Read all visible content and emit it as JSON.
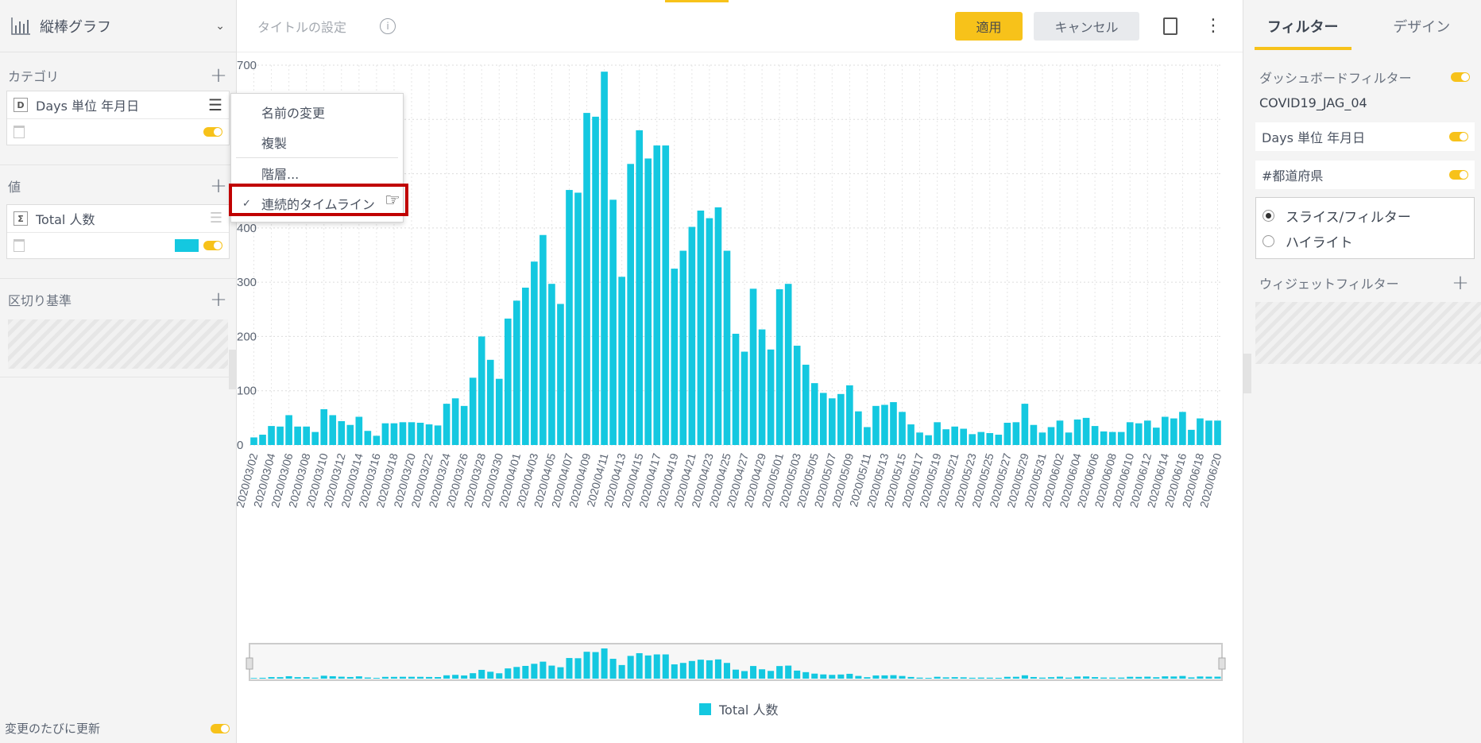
{
  "left_panel": {
    "chart_type_label": "縦棒グラフ",
    "category_label": "カテゴリ",
    "category_field": {
      "badge": "D",
      "label": "Days 単位 年月日"
    },
    "value_label": "値",
    "value_field": {
      "badge": "Σ",
      "label": "Total 人数",
      "color": "#14c8e0"
    },
    "breakby_label": "区切り基準",
    "auto_update_label": "変更のたびに更新"
  },
  "context_menu": {
    "items": [
      "名前の変更",
      "複製",
      "階層...",
      "連続的タイムライン"
    ],
    "checked_index": 3
  },
  "topbar": {
    "title_placeholder": "タイトルの設定",
    "info": "i",
    "apply": "適用",
    "cancel": "キャンセル"
  },
  "right_panel": {
    "tab_filter": "フィルター",
    "tab_design": "デザイン",
    "dashboard_filter_label": "ダッシュボードフィルター",
    "datasource": "COVID19_JAG_04",
    "filters": [
      "Days 単位 年月日",
      "#都道府県"
    ],
    "radio_slice": "スライス/フィルター",
    "radio_highlight": "ハイライト",
    "widget_filter_label": "ウィジェットフィルター"
  },
  "colors": {
    "accent": "#f7c21a",
    "bar": "#14c8e0"
  },
  "chart_data": {
    "type": "bar",
    "series_name": "Total 人数",
    "ylim": [
      0,
      700
    ],
    "yticks": [
      0,
      100,
      200,
      300,
      400,
      500,
      600,
      700
    ],
    "grid": true,
    "legend": "bottom",
    "start_date": "2020/03/02",
    "categories": [
      "2020/03/02",
      "2020/03/03",
      "2020/03/04",
      "2020/03/05",
      "2020/03/06",
      "2020/03/07",
      "2020/03/08",
      "2020/03/09",
      "2020/03/10",
      "2020/03/11",
      "2020/03/12",
      "2020/03/13",
      "2020/03/14",
      "2020/03/15",
      "2020/03/16",
      "2020/03/17",
      "2020/03/18",
      "2020/03/19",
      "2020/03/20",
      "2020/03/21",
      "2020/03/22",
      "2020/03/23",
      "2020/03/24",
      "2020/03/25",
      "2020/03/26",
      "2020/03/27",
      "2020/03/28",
      "2020/03/29",
      "2020/03/30",
      "2020/03/31",
      "2020/04/01",
      "2020/04/02",
      "2020/04/03",
      "2020/04/04",
      "2020/04/05",
      "2020/04/06",
      "2020/04/07",
      "2020/04/08",
      "2020/04/09",
      "2020/04/10",
      "2020/04/11",
      "2020/04/12",
      "2020/04/13",
      "2020/04/14",
      "2020/04/15",
      "2020/04/16",
      "2020/04/17",
      "2020/04/18",
      "2020/04/19",
      "2020/04/20",
      "2020/04/21",
      "2020/04/22",
      "2020/04/23",
      "2020/04/24",
      "2020/04/25",
      "2020/04/26",
      "2020/04/27",
      "2020/04/28",
      "2020/04/29",
      "2020/04/30",
      "2020/05/01",
      "2020/05/02",
      "2020/05/03",
      "2020/05/04",
      "2020/05/05",
      "2020/05/06",
      "2020/05/07",
      "2020/05/08",
      "2020/05/09",
      "2020/05/10",
      "2020/05/11",
      "2020/05/12",
      "2020/05/13",
      "2020/05/14",
      "2020/05/15",
      "2020/05/16",
      "2020/05/17",
      "2020/05/18",
      "2020/05/19",
      "2020/05/20",
      "2020/05/21",
      "2020/05/22",
      "2020/05/23",
      "2020/05/24",
      "2020/05/25",
      "2020/05/26",
      "2020/05/27",
      "2020/05/28",
      "2020/05/29",
      "2020/05/30",
      "2020/05/31",
      "2020/06/01",
      "2020/06/02",
      "2020/06/03",
      "2020/06/04",
      "2020/06/05",
      "2020/06/06",
      "2020/06/07",
      "2020/06/08",
      "2020/06/09",
      "2020/06/10",
      "2020/06/11",
      "2020/06/12",
      "2020/06/13",
      "2020/06/14",
      "2020/06/15",
      "2020/06/16",
      "2020/06/17",
      "2020/06/18",
      "2020/06/19",
      "2020/06/20"
    ],
    "values": [
      14,
      19,
      35,
      34,
      55,
      34,
      34,
      24,
      66,
      55,
      44,
      37,
      52,
      26,
      17,
      40,
      40,
      42,
      42,
      41,
      38,
      36,
      76,
      86,
      72,
      124,
      200,
      157,
      122,
      233,
      266,
      290,
      338,
      387,
      297,
      260,
      470,
      465,
      612,
      605,
      688,
      452,
      310,
      518,
      580,
      528,
      552,
      552,
      325,
      358,
      402,
      432,
      418,
      438,
      358,
      205,
      172,
      288,
      213,
      176,
      287,
      297,
      183,
      148,
      114,
      96,
      86,
      94,
      110,
      62,
      33,
      72,
      74,
      79,
      61,
      38,
      23,
      18,
      42,
      29,
      34,
      30,
      20,
      24,
      22,
      19,
      41,
      42,
      76,
      37,
      23,
      33,
      45,
      23,
      47,
      50,
      35,
      25,
      24,
      24,
      42,
      40,
      45,
      32,
      52,
      49,
      61,
      28,
      49,
      45,
      45
    ]
  }
}
